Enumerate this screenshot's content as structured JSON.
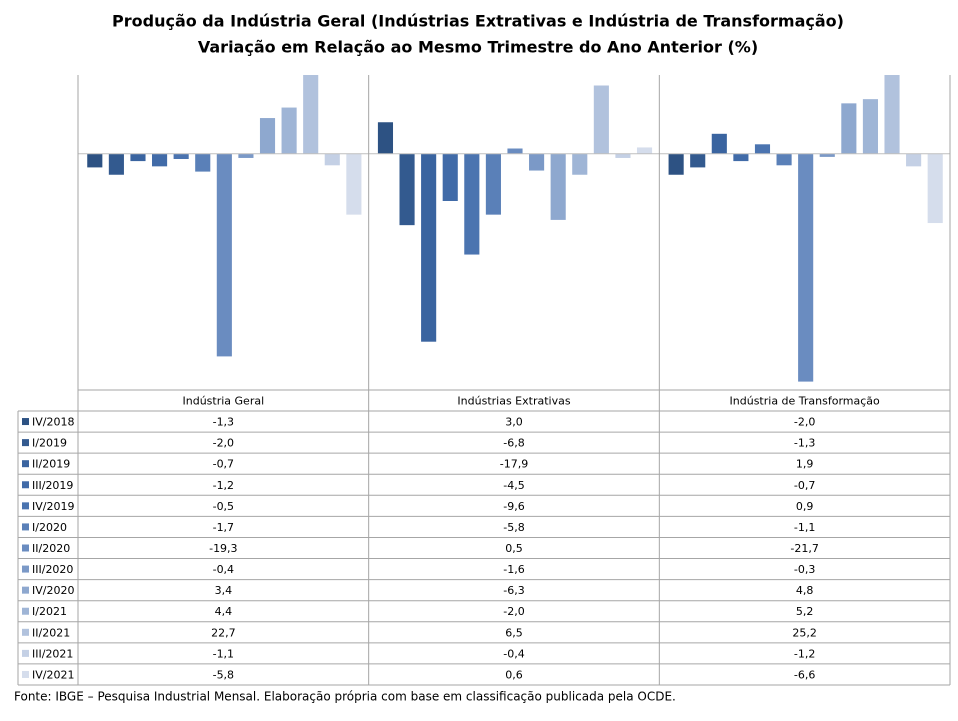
{
  "chart_data": {
    "type": "bar",
    "title": "Produção da Indústria Geral (Indústrias Extrativas e Indústria de Transformação)",
    "subtitle": "Variação em Relação ao Mesmo Trimestre do Ano Anterior (%)",
    "source": "Fonte: IBGE – Pesquisa Industrial Mensal. Elaboração própria com base em classificação publicada pela OCDE.",
    "categories": [
      "Indústria Geral",
      "Indústrias Extrativas",
      "Indústria de Transformação"
    ],
    "ylim": [
      -22.5,
      7.5
    ],
    "series": [
      {
        "name": "IV/2018",
        "color": "#2d5283",
        "values": [
          -1.3,
          3.0,
          -2.0
        ],
        "value_labels": [
          "-1,3",
          "3,0",
          "-2,0"
        ]
      },
      {
        "name": "I/2019",
        "color": "#335a8f",
        "values": [
          -2.0,
          -6.8,
          -1.3
        ],
        "value_labels": [
          "-2,0",
          "-6,8",
          "-1,3"
        ]
      },
      {
        "name": "II/2019",
        "color": "#3a64a0",
        "values": [
          -0.7,
          -17.9,
          1.9
        ],
        "value_labels": [
          "-0,7",
          "-17,9",
          "1,9"
        ]
      },
      {
        "name": "III/2019",
        "color": "#416ba8",
        "values": [
          -1.2,
          -4.5,
          -0.7
        ],
        "value_labels": [
          "-1,2",
          "-4,5",
          "-0,7"
        ]
      },
      {
        "name": "IV/2019",
        "color": "#4b74b0",
        "values": [
          -0.5,
          -9.6,
          0.9
        ],
        "value_labels": [
          "-0,5",
          "-9,6",
          "0,9"
        ]
      },
      {
        "name": "I/2020",
        "color": "#5a80b8",
        "values": [
          -1.7,
          -5.8,
          -1.1
        ],
        "value_labels": [
          "-1,7",
          "-5,8",
          "-1,1"
        ]
      },
      {
        "name": "II/2020",
        "color": "#6a8cc0",
        "values": [
          -19.3,
          0.5,
          -21.7
        ],
        "value_labels": [
          "-19,3",
          "0,5",
          "-21,7"
        ]
      },
      {
        "name": "III/2020",
        "color": "#7b99c7",
        "values": [
          -0.4,
          -1.6,
          -0.3
        ],
        "value_labels": [
          "-0,4",
          "-1,6",
          "-0,3"
        ]
      },
      {
        "name": "IV/2020",
        "color": "#8ea8cf",
        "values": [
          3.4,
          -6.3,
          4.8
        ],
        "value_labels": [
          "3,4",
          "-6,3",
          "4,8"
        ]
      },
      {
        "name": "I/2021",
        "color": "#9fb5d6",
        "values": [
          4.4,
          -2.0,
          5.2
        ],
        "value_labels": [
          "4,4",
          "-2,0",
          "5,2"
        ]
      },
      {
        "name": "II/2021",
        "color": "#b1c2dd",
        "values": [
          22.7,
          6.5,
          25.2
        ],
        "value_labels": [
          "22,7",
          "6,5",
          "25,2"
        ]
      },
      {
        "name": "III/2021",
        "color": "#c4d0e5",
        "values": [
          -1.1,
          -0.4,
          -1.2
        ],
        "value_labels": [
          "-1,1",
          "-0,4",
          "-1,2"
        ]
      },
      {
        "name": "IV/2021",
        "color": "#d5ddec",
        "values": [
          -5.8,
          0.6,
          -6.6
        ],
        "value_labels": [
          "-5,8",
          "0,6",
          "-6,6"
        ]
      }
    ]
  }
}
